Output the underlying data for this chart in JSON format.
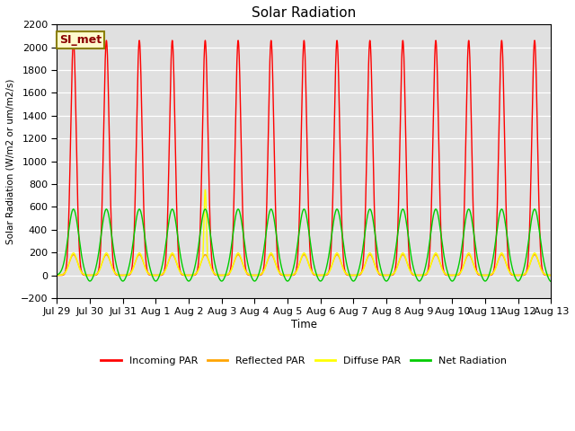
{
  "title": "Solar Radiation",
  "ylabel": "Solar Radiation (W/m2 or um/m2/s)",
  "xlabel": "Time",
  "ylim": [
    -200,
    2200
  ],
  "yticks": [
    -200,
    0,
    200,
    400,
    600,
    800,
    1000,
    1200,
    1400,
    1600,
    1800,
    2000,
    2200
  ],
  "xtick_labels": [
    "Jul 29",
    "Jul 30",
    "Jul 31",
    "Aug 1",
    "Aug 2",
    "Aug 3",
    "Aug 4",
    "Aug 5",
    "Aug 6",
    "Aug 7",
    "Aug 8",
    "Aug 9",
    "Aug 10",
    "Aug 11",
    "Aug 12",
    "Aug 13"
  ],
  "num_days": 15,
  "incoming_peak": 2060,
  "reflected_peak": 180,
  "diffuse_peak": 195,
  "net_peak": 580,
  "net_night": -60,
  "diffuse_spike_day": 4,
  "diffuse_spike_peak": 750,
  "annotation_text": "SI_met",
  "annotation_color": "#8B0000",
  "annotation_bg": "#FFFACD",
  "annotation_border": "#8B8000",
  "colors": {
    "incoming": "#FF0000",
    "reflected": "#FFA500",
    "diffuse": "#FFFF00",
    "net": "#00CC00"
  },
  "bg_color": "#E0E0E0",
  "line_width": 1.0
}
